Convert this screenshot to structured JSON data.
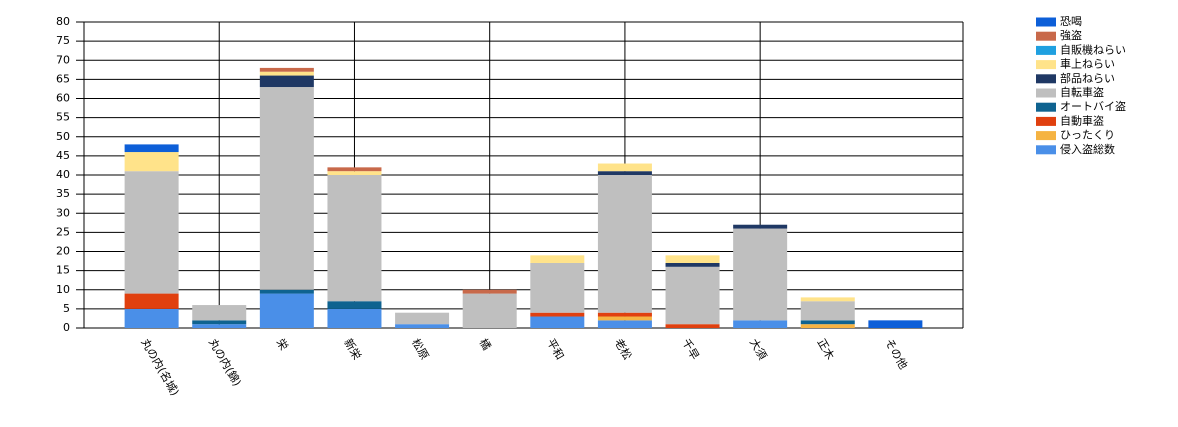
{
  "chart_data": {
    "type": "stacked_bar",
    "categories": [
      "丸の内(名城)",
      "丸の内(錦)",
      "栄",
      "新栄",
      "松原",
      "橘",
      "平和",
      "老松",
      "千早",
      "大須",
      "正木",
      "その他"
    ],
    "series": [
      {
        "name": "侵入盗総数",
        "color": "#4a8fe8",
        "values": [
          5,
          1,
          9,
          5,
          1,
          0,
          3,
          2,
          0,
          2,
          0,
          0
        ]
      },
      {
        "name": "ひったくり",
        "color": "#f5b342",
        "values": [
          0,
          0,
          0,
          0,
          0,
          0,
          0,
          1,
          0,
          0,
          1,
          0
        ]
      },
      {
        "name": "自動車盗",
        "color": "#e0400f",
        "values": [
          4,
          0,
          0,
          0,
          0,
          0,
          1,
          1,
          1,
          0,
          0,
          0
        ]
      },
      {
        "name": "オートバイ盗",
        "color": "#0f6390",
        "values": [
          0,
          1,
          1,
          2,
          0,
          0,
          0,
          0,
          0,
          0,
          1,
          0
        ]
      },
      {
        "name": "自転車盗",
        "color": "#bfbfbf",
        "values": [
          32,
          4,
          53,
          33,
          3,
          9,
          13,
          36,
          15,
          24,
          5,
          0
        ]
      },
      {
        "name": "部品ねらい",
        "color": "#1f3864",
        "values": [
          0,
          0,
          3,
          0,
          0,
          0,
          0,
          1,
          1,
          1,
          0,
          0
        ]
      },
      {
        "name": "車上ねらい",
        "color": "#ffe38a",
        "values": [
          5,
          0,
          1,
          1,
          0,
          0,
          2,
          2,
          2,
          0,
          1,
          0
        ]
      },
      {
        "name": "自販機ねらい",
        "color": "#1fa0e0",
        "values": [
          0,
          0,
          0,
          0,
          0,
          0,
          0,
          0,
          0,
          0,
          0,
          0
        ]
      },
      {
        "name": "強盗",
        "color": "#c8694a",
        "values": [
          0,
          0,
          1,
          1,
          0,
          1,
          0,
          0,
          0,
          0,
          0,
          0
        ]
      },
      {
        "name": "恐喝",
        "color": "#0d5fd8",
        "values": [
          2,
          0,
          0,
          0,
          0,
          0,
          0,
          0,
          0,
          0,
          0,
          2
        ]
      }
    ],
    "ylim": [
      0,
      80
    ],
    "yticks": [
      0,
      5,
      10,
      15,
      20,
      25,
      30,
      35,
      40,
      45,
      50,
      55,
      60,
      65,
      70,
      75,
      80
    ],
    "grid": true,
    "legend": "top-right"
  }
}
